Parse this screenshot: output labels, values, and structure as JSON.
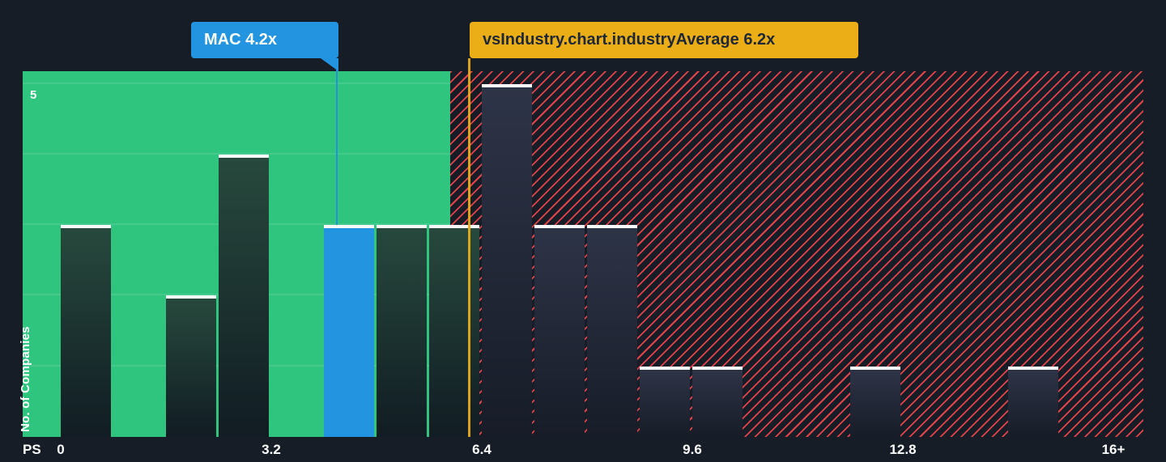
{
  "chart_data": {
    "type": "bar",
    "xlabel": "PS",
    "ylabel": "No. of Companies",
    "x_tick_labels": [
      "0",
      "3.2",
      "6.4",
      "9.6",
      "12.8",
      "16+"
    ],
    "x_tick_values": [
      0,
      3.2,
      6.4,
      9.6,
      12.8,
      16
    ],
    "y_tick_label": "5",
    "y_max": 5,
    "ylim": [
      0,
      5.2
    ],
    "xlim": [
      -0.6,
      16.5
    ],
    "bin_width": 0.8,
    "grid": "horizontal, left green zone only",
    "bins": [
      {
        "x": 0.0,
        "count": 3
      },
      {
        "x": 1.6,
        "count": 2
      },
      {
        "x": 2.4,
        "count": 4
      },
      {
        "x": 4.0,
        "count": 3,
        "highlight": true
      },
      {
        "x": 4.8,
        "count": 3
      },
      {
        "x": 5.6,
        "count": 3
      },
      {
        "x": 6.4,
        "count": 5
      },
      {
        "x": 7.2,
        "count": 3
      },
      {
        "x": 8.0,
        "count": 3
      },
      {
        "x": 8.8,
        "count": 1
      },
      {
        "x": 9.6,
        "count": 1
      },
      {
        "x": 12.0,
        "count": 1
      },
      {
        "x": 14.4,
        "count": 1
      }
    ],
    "markers": {
      "company": {
        "label": "MAC 4.2x",
        "value": 4.2
      },
      "industry": {
        "label": "vsIndustry.chart.industryAverage 6.2x",
        "value": 6.2
      }
    },
    "regions": {
      "below_average_end": 5.92
    }
  },
  "colors": {
    "background": "#161d27",
    "green_zone": "#2fc57f",
    "company_accent": "#2394df",
    "industry_accent": "#ecae17",
    "hatch_red": "#e4434a"
  }
}
